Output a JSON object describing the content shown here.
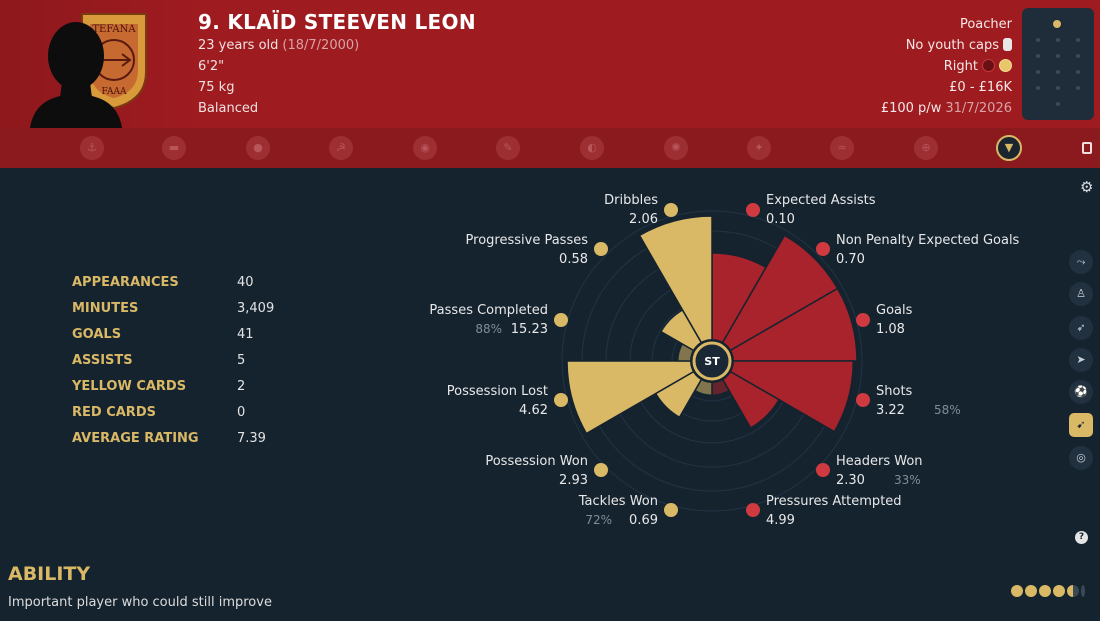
{
  "player": {
    "name": "9. KLAÏD STEEVEN LEON",
    "age": "23 years old",
    "dob": "(18/7/2000)",
    "height": "6'2\"",
    "weight": "75 kg",
    "personality": "Balanced",
    "role": "Poacher",
    "caps": "No youth caps",
    "foot": "Right",
    "value": "£0 - £16K",
    "wage": "£100 p/w",
    "contract_end": "31/7/2026"
  },
  "crest": {
    "top_text": "TEFANA",
    "bottom_text": "FAAA"
  },
  "colors": {
    "header": "#9e1b20",
    "iconbar": "#8a1a1e",
    "background": "#15232f",
    "gold": "#d9b866",
    "red": "#a8232b"
  },
  "tabs": [
    {
      "icon": "anchor-icon"
    },
    {
      "icon": "club-icon"
    },
    {
      "icon": "ball-icon"
    },
    {
      "icon": "hammer-icon"
    },
    {
      "icon": "coin-icon"
    },
    {
      "icon": "pen-icon"
    },
    {
      "icon": "helmet-icon"
    },
    {
      "icon": "star-badge-icon"
    },
    {
      "icon": "bird-icon"
    },
    {
      "icon": "wave-icon"
    },
    {
      "icon": "target-icon"
    },
    {
      "icon": "wolf-icon",
      "active": true
    }
  ],
  "stats": [
    {
      "label": "APPEARANCES",
      "value": "40"
    },
    {
      "label": "MINUTES",
      "value": "3,409"
    },
    {
      "label": "GOALS",
      "value": "41"
    },
    {
      "label": "ASSISTS",
      "value": "5"
    },
    {
      "label": "YELLOW CARDS",
      "value": "2"
    },
    {
      "label": "RED CARDS",
      "value": "0"
    },
    {
      "label": "AVERAGE RATING",
      "value": "7.39"
    }
  ],
  "chart_data": {
    "type": "polar-area",
    "center_label": "ST",
    "metrics": [
      {
        "name": "Expected Assists",
        "value": "0.10",
        "percentile": 0.7,
        "group": "attacking",
        "pct_label": ""
      },
      {
        "name": "Non Penalty Expected Goals",
        "value": "0.70",
        "percentile": 1.0,
        "group": "attacking",
        "pct_label": ""
      },
      {
        "name": "Goals",
        "value": "1.08",
        "percentile": 1.0,
        "group": "attacking",
        "pct_label": ""
      },
      {
        "name": "Shots",
        "value": "3.22",
        "percentile": 0.97,
        "group": "attacking",
        "pct_label": "58%"
      },
      {
        "name": "Headers Won",
        "value": "2.30",
        "percentile": 0.45,
        "group": "attacking",
        "pct_label": "33%"
      },
      {
        "name": "Pressures Attempted",
        "value": "4.99",
        "percentile": 0.1,
        "group": "attacking",
        "pct_label": ""
      },
      {
        "name": "Tackles Won",
        "value": "0.69",
        "percentile": 0.1,
        "group": "possession",
        "pct_label": "72%"
      },
      {
        "name": "Possession Won",
        "value": "2.93",
        "percentile": 0.35,
        "group": "possession",
        "pct_label": ""
      },
      {
        "name": "Possession Lost",
        "value": "4.62",
        "percentile": 1.0,
        "group": "possession",
        "pct_label": ""
      },
      {
        "name": "Passes Completed",
        "value": "15.23",
        "percentile": 0.1,
        "group": "possession",
        "pct_label": "88%"
      },
      {
        "name": "Progressive Passes",
        "value": "0.58",
        "percentile": 0.3,
        "group": "possession",
        "pct_label": ""
      },
      {
        "name": "Dribbles",
        "value": "2.06",
        "percentile": 1.0,
        "group": "possession",
        "pct_label": ""
      }
    ]
  },
  "side_buttons": [
    {
      "icon": "player-slide-icon"
    },
    {
      "icon": "player-stand-icon"
    },
    {
      "icon": "player-kick-icon"
    },
    {
      "icon": "player-run-icon"
    },
    {
      "icon": "player-dribble-icon"
    },
    {
      "icon": "player-shoot-icon",
      "active": true
    },
    {
      "icon": "player-goalkeeper-icon"
    }
  ],
  "ability": {
    "title": "ABILITY",
    "text": "Important player who could still improve",
    "stars": 4.5
  }
}
